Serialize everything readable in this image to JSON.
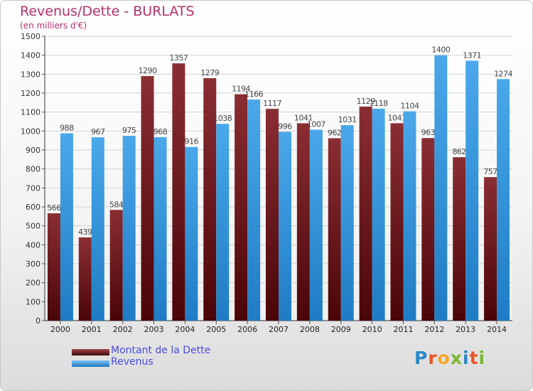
{
  "chart_data": {
    "type": "bar",
    "title": "Revenus/Dette - BURLATS",
    "subtitle": "(en milliers d'€)",
    "categories": [
      "2000",
      "2001",
      "2002",
      "2003",
      "2004",
      "2005",
      "2006",
      "2007",
      "2008",
      "2009",
      "2010",
      "2011",
      "2012",
      "2013",
      "2014"
    ],
    "series": [
      {
        "name": "Montant de la Dette",
        "color": "#7a1f24",
        "values": [
          566,
          439,
          584,
          1290,
          1357,
          1279,
          1194,
          1117,
          1041,
          962,
          1129,
          1041,
          963,
          862,
          757
        ]
      },
      {
        "name": "Revenus",
        "color": "#3a9be0",
        "values": [
          988,
          967,
          975,
          968,
          916,
          1038,
          1166,
          996,
          1007,
          1031,
          1118,
          1104,
          1400,
          1371,
          1274
        ]
      }
    ],
    "ylim": [
      0,
      1500
    ],
    "yticks": [
      0,
      100,
      200,
      300,
      400,
      500,
      600,
      700,
      800,
      900,
      1000,
      1100,
      1200,
      1300,
      1400,
      1500
    ],
    "grid": true,
    "legend": "bottom-left"
  },
  "logo": {
    "text": "Proxiti",
    "colors": [
      "#2a88c8",
      "#e8542a",
      "#f5a623",
      "#7bb634",
      "#2a88c8",
      "#e8542a",
      "#7bb634"
    ]
  }
}
